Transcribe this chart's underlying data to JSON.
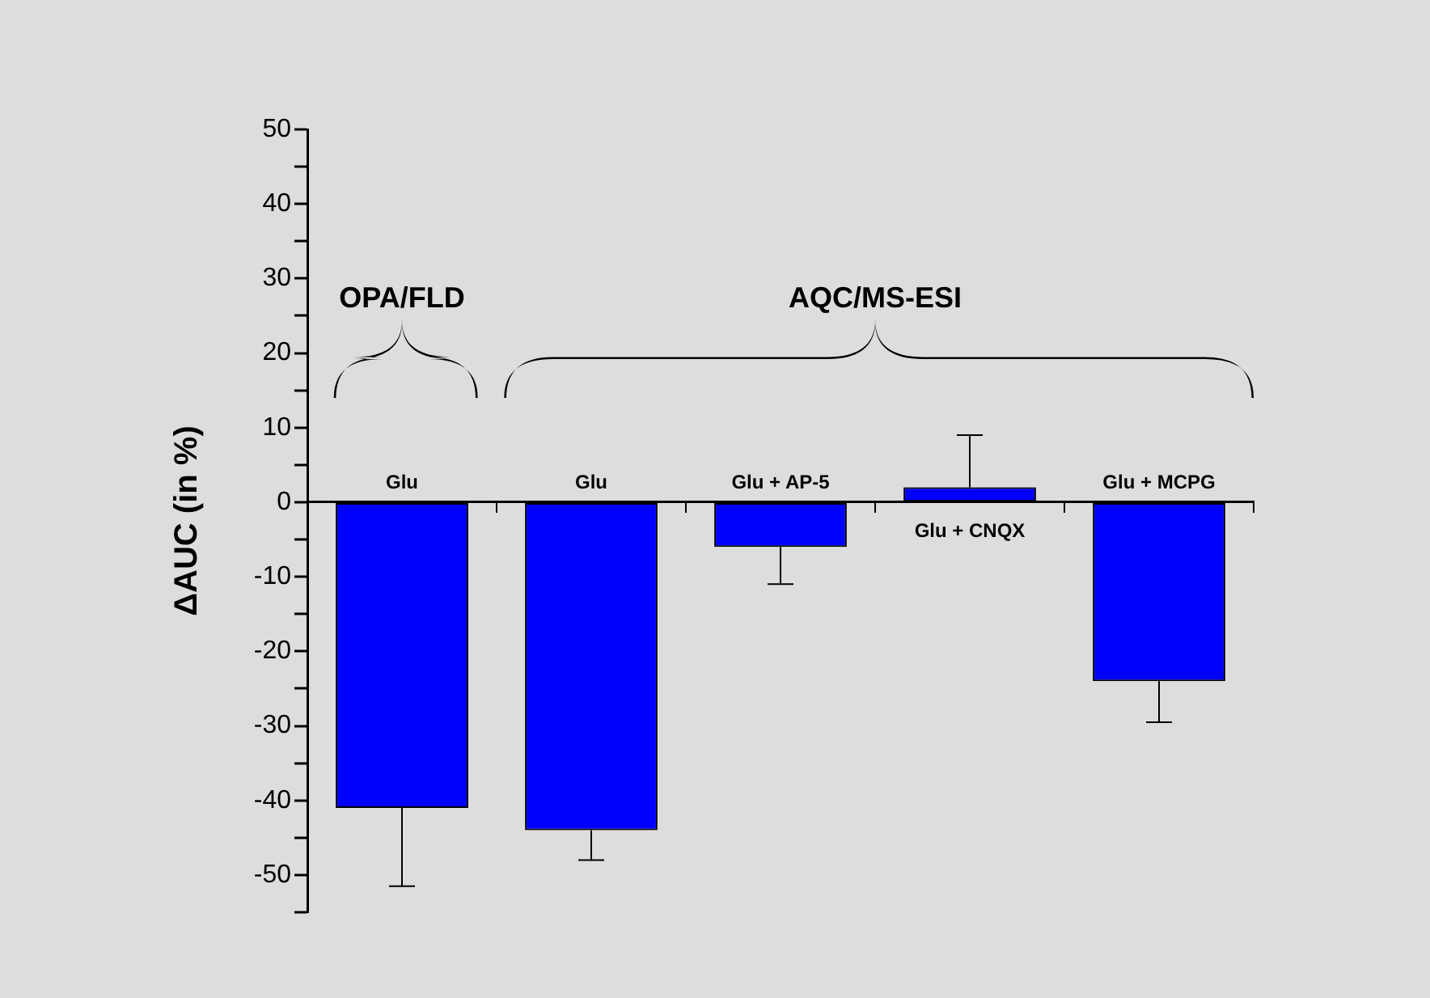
{
  "chart_data": {
    "type": "bar",
    "ylabel": "ΔAUC (in %)",
    "categories": [
      "Glu",
      "Glu",
      "Glu + AP-5",
      "Glu + CNQX",
      "Glu + MCPG"
    ],
    "values": [
      -41,
      -44,
      -6,
      2,
      -24
    ],
    "errors": [
      [
        -51.5,
        -41
      ],
      [
        -48,
        -44
      ],
      [
        -11,
        -6
      ],
      [
        2,
        9
      ],
      [
        -29.5,
        -24
      ]
    ],
    "color": "#0000ff",
    "ylim": [
      -55,
      50
    ],
    "yticks": [
      {
        "value": -55,
        "label": null
      },
      -50,
      {
        "value": -45,
        "label": null
      },
      -40,
      {
        "value": -35,
        "label": null
      },
      -30,
      {
        "value": -25,
        "label": null
      },
      -20,
      {
        "value": -15,
        "label": null
      },
      -10,
      {
        "value": -5,
        "label": null
      },
      0,
      {
        "value": 5,
        "label": null
      },
      10,
      {
        "value": 15,
        "label": null
      },
      20,
      {
        "value": 25,
        "label": null
      },
      30,
      {
        "value": 35,
        "label": null
      },
      40,
      {
        "value": 45,
        "label": null
      },
      50
    ],
    "annotations": [
      "OPA/FLD",
      "AQC/MS-ESI"
    ],
    "grid": false,
    "legend": false
  }
}
